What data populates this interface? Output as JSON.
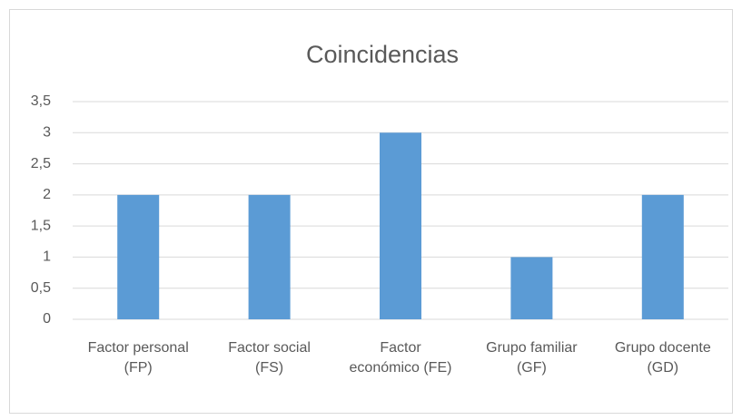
{
  "chart_data": {
    "type": "bar",
    "title": "Coincidencias",
    "categories": [
      "Factor personal (FP)",
      "Factor social (FS)",
      "Factor económico (FE)",
      "Grupo familiar (GF)",
      "Grupo docente (GD)"
    ],
    "values": [
      2,
      2,
      3,
      1,
      2
    ],
    "color": "#5b9bd5",
    "ylim": [
      0,
      3.5
    ],
    "yticks": [
      0,
      {
        "value": 0.5,
        "label": "0,5"
      },
      1,
      {
        "value": 1.5,
        "label": "1,5"
      },
      2,
      {
        "value": 2.5,
        "label": "2,5"
      },
      3,
      {
        "value": 3.5,
        "label": "3,5"
      }
    ],
    "grid": true
  }
}
